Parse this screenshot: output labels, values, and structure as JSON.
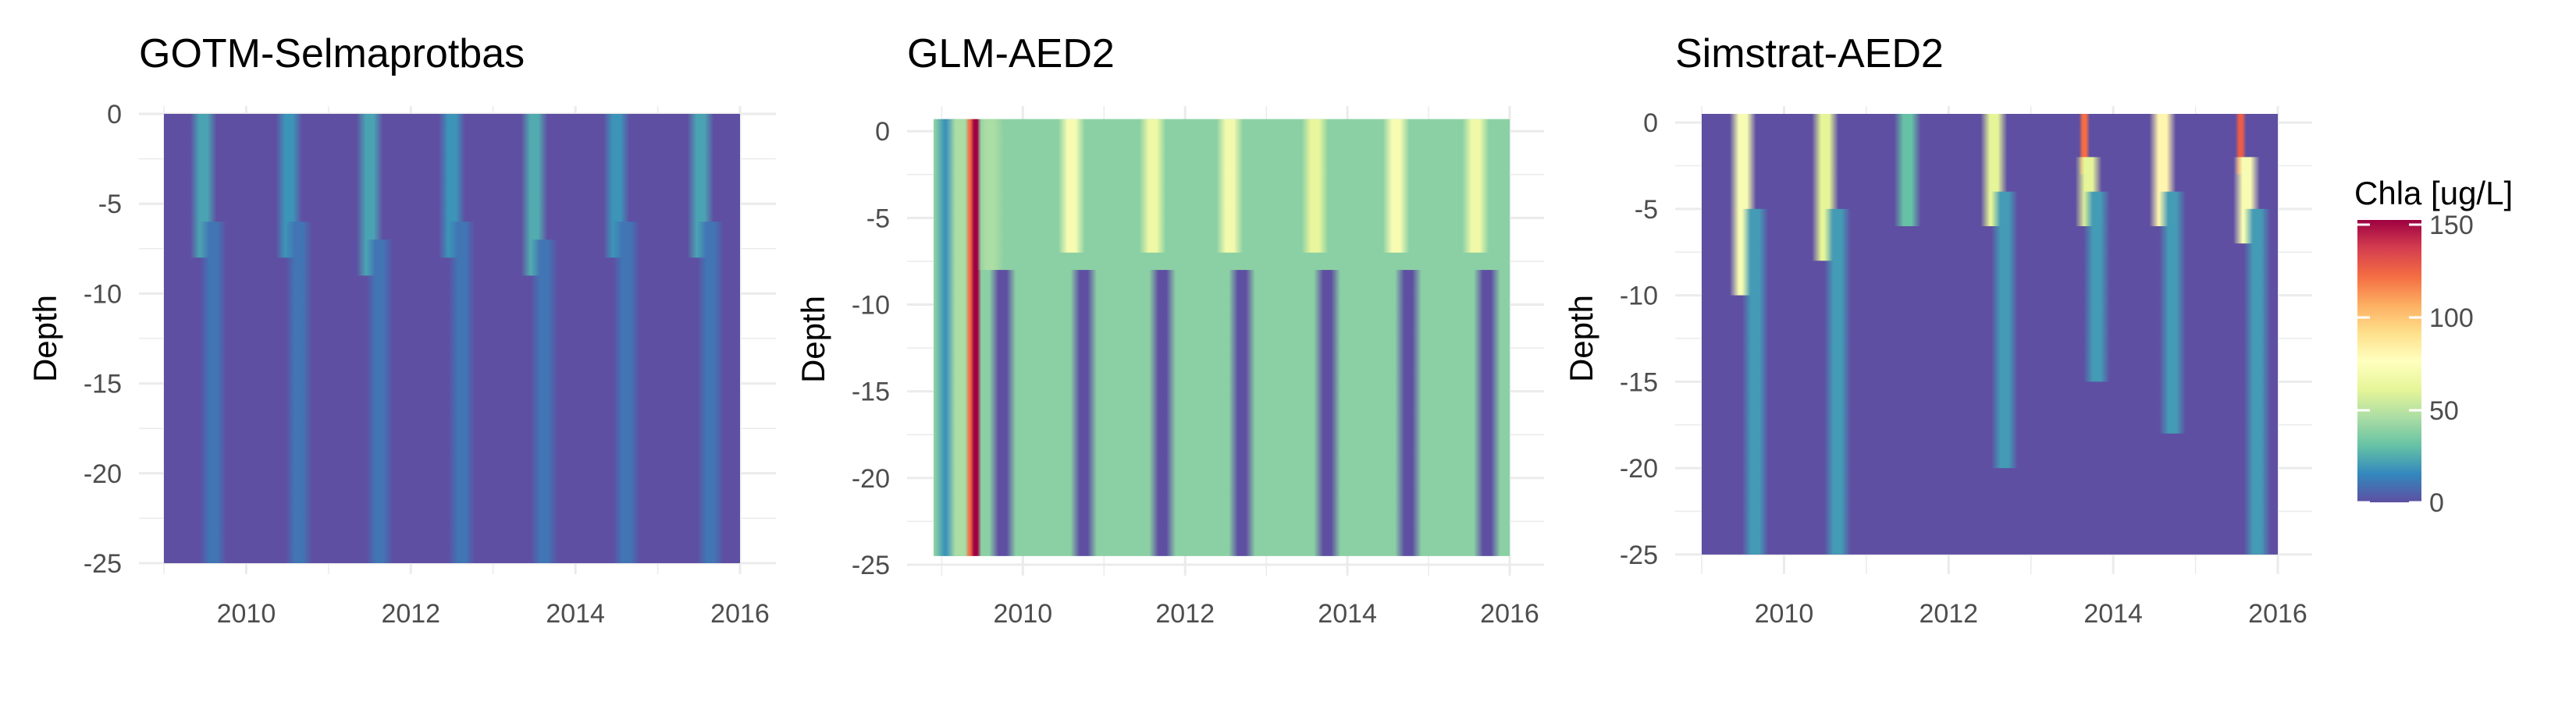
{
  "chart_data": [
    {
      "type": "heatmap",
      "title": "GOTM-Selmaprotbas",
      "ylabel": "Depth",
      "xlabel": "",
      "xlim": [
        2009.0,
        2016.0
      ],
      "ylim": [
        -25,
        0
      ],
      "xticks": [
        2010,
        2012,
        2014,
        2016
      ],
      "yticks": [
        0,
        -5,
        -10,
        -15,
        -20,
        -25
      ],
      "max_depth": -25,
      "grid": true,
      "background_value": 0,
      "columns": [
        {
          "x": 2009.48,
          "value": 22,
          "depth_top": 0,
          "depth_bottom": -8
        },
        {
          "x": 2009.6,
          "value": 10,
          "depth_top": -6,
          "depth_bottom": -25
        },
        {
          "x": 2010.52,
          "value": 18,
          "depth_top": 0,
          "depth_bottom": -8
        },
        {
          "x": 2010.64,
          "value": 10,
          "depth_top": -6,
          "depth_bottom": -25
        },
        {
          "x": 2011.5,
          "value": 22,
          "depth_top": 0,
          "depth_bottom": -9
        },
        {
          "x": 2011.62,
          "value": 10,
          "depth_top": -7,
          "depth_bottom": -25
        },
        {
          "x": 2012.5,
          "value": 18,
          "depth_top": 0,
          "depth_bottom": -8
        },
        {
          "x": 2012.62,
          "value": 10,
          "depth_top": -6,
          "depth_bottom": -25
        },
        {
          "x": 2013.5,
          "value": 24,
          "depth_top": 0,
          "depth_bottom": -9
        },
        {
          "x": 2013.62,
          "value": 10,
          "depth_top": -7,
          "depth_bottom": -25
        },
        {
          "x": 2014.5,
          "value": 18,
          "depth_top": 0,
          "depth_bottom": -8
        },
        {
          "x": 2014.62,
          "value": 10,
          "depth_top": -6,
          "depth_bottom": -25
        },
        {
          "x": 2015.52,
          "value": 22,
          "depth_top": 0,
          "depth_bottom": -8
        },
        {
          "x": 2015.64,
          "value": 10,
          "depth_top": -6,
          "depth_bottom": -25
        }
      ]
    },
    {
      "type": "heatmap",
      "title": "GLM-AED2",
      "ylabel": "Depth",
      "xlabel": "",
      "xlim": [
        2008.9,
        2016.0
      ],
      "ylim": [
        -25,
        1
      ],
      "xticks": [
        2010,
        2012,
        2014,
        2016
      ],
      "yticks": [
        0,
        -5,
        -10,
        -15,
        -20,
        -25
      ],
      "max_depth": -24.5,
      "grid": true,
      "background_value": 38,
      "columns": [
        {
          "x": 2009.08,
          "value": 18,
          "depth_top": 0.7,
          "depth_bottom": -24.5
        },
        {
          "x": 2009.22,
          "value": 45,
          "depth_top": 0.7,
          "depth_bottom": -24.5
        },
        {
          "x": 2009.36,
          "value": 120,
          "depth_top": 0.7,
          "depth_bottom": -24.5
        },
        {
          "x": 2009.42,
          "value": 150,
          "depth_top": 0.7,
          "depth_bottom": -24.5
        },
        {
          "x": 2009.6,
          "value": 45,
          "depth_top": 0.7,
          "depth_bottom": -8
        },
        {
          "x": 2009.75,
          "value": 0,
          "depth_top": -8,
          "depth_bottom": -24.5
        },
        {
          "x": 2010.6,
          "value": 70,
          "depth_top": 0.7,
          "depth_bottom": -7
        },
        {
          "x": 2010.75,
          "value": 0,
          "depth_top": -8,
          "depth_bottom": -24.5
        },
        {
          "x": 2011.6,
          "value": 65,
          "depth_top": 0.7,
          "depth_bottom": -7
        },
        {
          "x": 2011.72,
          "value": 0,
          "depth_top": -8,
          "depth_bottom": -24.5
        },
        {
          "x": 2012.55,
          "value": 68,
          "depth_top": 0.7,
          "depth_bottom": -7
        },
        {
          "x": 2012.7,
          "value": 0,
          "depth_top": -8,
          "depth_bottom": -24.5
        },
        {
          "x": 2013.6,
          "value": 62,
          "depth_top": 0.7,
          "depth_bottom": -7
        },
        {
          "x": 2013.75,
          "value": 0,
          "depth_top": -8,
          "depth_bottom": -24.5
        },
        {
          "x": 2014.6,
          "value": 70,
          "depth_top": 0.7,
          "depth_bottom": -7
        },
        {
          "x": 2014.75,
          "value": 0,
          "depth_top": -8,
          "depth_bottom": -24.5
        },
        {
          "x": 2015.58,
          "value": 66,
          "depth_top": 0.7,
          "depth_bottom": -7
        },
        {
          "x": 2015.72,
          "value": 0,
          "depth_top": -8,
          "depth_bottom": -24.5
        }
      ]
    },
    {
      "type": "heatmap",
      "title": "Simstrat-AED2",
      "ylabel": "Depth",
      "xlabel": "",
      "xlim": [
        2009.0,
        2016.0
      ],
      "ylim": [
        -25.5,
        0.5
      ],
      "xticks": [
        2010,
        2012,
        2014,
        2016
      ],
      "yticks": [
        0,
        -5,
        -10,
        -15,
        -20,
        -25
      ],
      "max_depth": -25,
      "grid": true,
      "background_value": 0,
      "columns": [
        {
          "x": 2009.5,
          "value": 70,
          "depth_top": 0.5,
          "depth_bottom": -10
        },
        {
          "x": 2009.65,
          "value": 20,
          "depth_top": -5,
          "depth_bottom": -25
        },
        {
          "x": 2010.5,
          "value": 60,
          "depth_top": 0.5,
          "depth_bottom": -8
        },
        {
          "x": 2010.65,
          "value": 20,
          "depth_top": -5,
          "depth_bottom": -25
        },
        {
          "x": 2011.5,
          "value": 30,
          "depth_top": 0.5,
          "depth_bottom": -6
        },
        {
          "x": 2012.55,
          "value": 60,
          "depth_top": 0.5,
          "depth_bottom": -6
        },
        {
          "x": 2012.68,
          "value": 20,
          "depth_top": -4,
          "depth_bottom": -20
        },
        {
          "x": 2013.65,
          "value": 120,
          "depth_top": 0.5,
          "depth_bottom": -3
        },
        {
          "x": 2013.7,
          "value": 60,
          "depth_top": -2,
          "depth_bottom": -6
        },
        {
          "x": 2013.8,
          "value": 20,
          "depth_top": -4,
          "depth_bottom": -15
        },
        {
          "x": 2014.6,
          "value": 80,
          "depth_top": 0.5,
          "depth_bottom": -6
        },
        {
          "x": 2014.72,
          "value": 20,
          "depth_top": -4,
          "depth_bottom": -18
        },
        {
          "x": 2015.55,
          "value": 125,
          "depth_top": 0.5,
          "depth_bottom": -3
        },
        {
          "x": 2015.62,
          "value": 70,
          "depth_top": -2,
          "depth_bottom": -7
        },
        {
          "x": 2015.75,
          "value": 20,
          "depth_top": -5,
          "depth_bottom": -25
        }
      ]
    }
  ],
  "legend": {
    "title": "Chla [ug/L]",
    "placement": "right",
    "min": 0,
    "max": 150,
    "ticks": [
      "150",
      "100",
      "50",
      "0"
    ],
    "colors": [
      "#5E4FA2",
      "#3288BD",
      "#66C2A5",
      "#ABDDA4",
      "#E6F598",
      "#FFFFBF",
      "#FEE08B",
      "#FDAE61",
      "#F46D43",
      "#D53E4F",
      "#9E0142"
    ]
  },
  "colors": {
    "grid": "#ebebeb",
    "tick_text": "#4d4d4d"
  }
}
